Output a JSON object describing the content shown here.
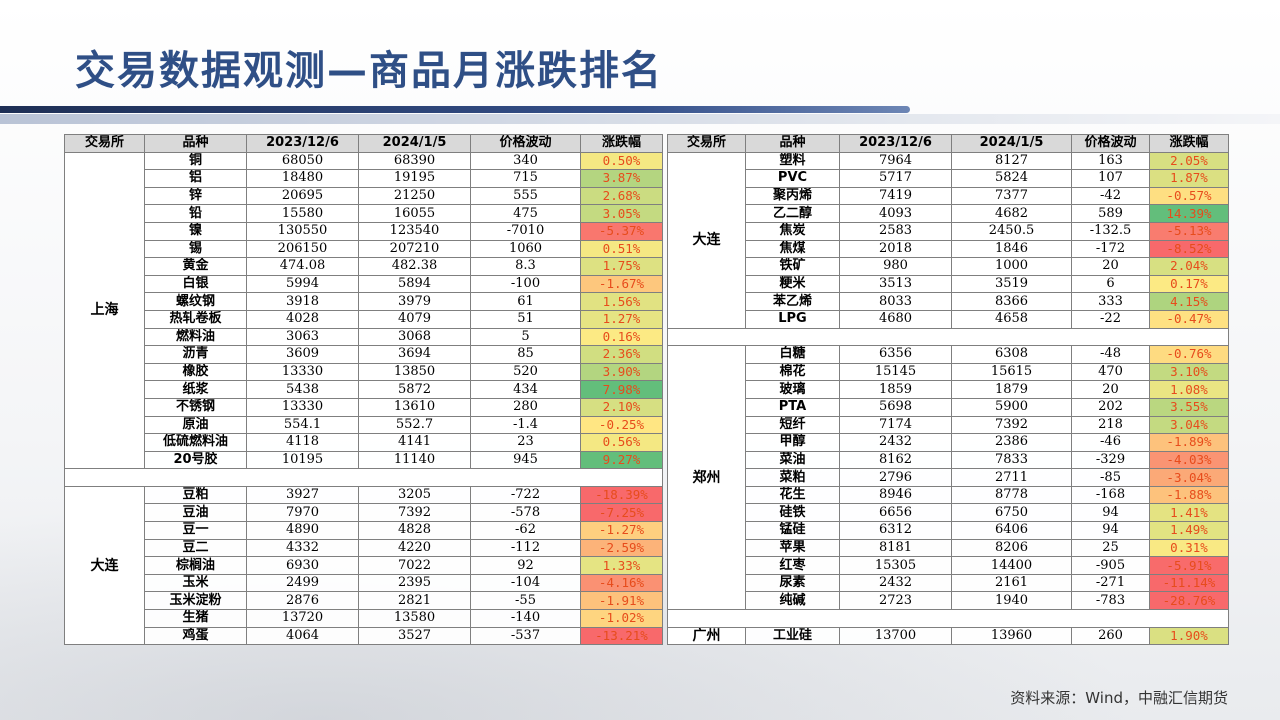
{
  "title": "交易数据观测—商品月涨跌排名",
  "source": "资料来源：Wind，中融汇信期货",
  "headers": [
    "交易所",
    "品种",
    "2023/12/6",
    "2024/1/5",
    "价格波动",
    "涨跌幅"
  ],
  "colors": {
    "up": "#63be7b",
    "down": "#f8696b",
    "mid": "#ffeb84",
    "change_text": "#e74c1c",
    "title": "#2f4f86"
  },
  "left_groups": [
    {
      "exchange": "上海",
      "rows": [
        {
          "name": "铜",
          "p1": "68050",
          "p2": "68390",
          "diff": "340",
          "chg": "0.50%",
          "pct": 0.5
        },
        {
          "name": "铝",
          "p1": "18480",
          "p2": "19195",
          "diff": "715",
          "chg": "3.87%",
          "pct": 3.87
        },
        {
          "name": "锌",
          "p1": "20695",
          "p2": "21250",
          "diff": "555",
          "chg": "2.68%",
          "pct": 2.68
        },
        {
          "name": "铅",
          "p1": "15580",
          "p2": "16055",
          "diff": "475",
          "chg": "3.05%",
          "pct": 3.05
        },
        {
          "name": "镍",
          "p1": "130550",
          "p2": "123540",
          "diff": "-7010",
          "chg": "-5.37%",
          "pct": -5.37
        },
        {
          "name": "锡",
          "p1": "206150",
          "p2": "207210",
          "diff": "1060",
          "chg": "0.51%",
          "pct": 0.51
        },
        {
          "name": "黄金",
          "p1": "474.08",
          "p2": "482.38",
          "diff": "8.3",
          "chg": "1.75%",
          "pct": 1.75
        },
        {
          "name": "白银",
          "p1": "5994",
          "p2": "5894",
          "diff": "-100",
          "chg": "-1.67%",
          "pct": -1.67
        },
        {
          "name": "螺纹钢",
          "p1": "3918",
          "p2": "3979",
          "diff": "61",
          "chg": "1.56%",
          "pct": 1.56
        },
        {
          "name": "热轧卷板",
          "p1": "4028",
          "p2": "4079",
          "diff": "51",
          "chg": "1.27%",
          "pct": 1.27
        },
        {
          "name": "燃料油",
          "p1": "3063",
          "p2": "3068",
          "diff": "5",
          "chg": "0.16%",
          "pct": 0.16
        },
        {
          "name": "沥青",
          "p1": "3609",
          "p2": "3694",
          "diff": "85",
          "chg": "2.36%",
          "pct": 2.36
        },
        {
          "name": "橡胶",
          "p1": "13330",
          "p2": "13850",
          "diff": "520",
          "chg": "3.90%",
          "pct": 3.9
        },
        {
          "name": "纸浆",
          "p1": "5438",
          "p2": "5872",
          "diff": "434",
          "chg": "7.98%",
          "pct": 7.98
        },
        {
          "name": "不锈钢",
          "p1": "13330",
          "p2": "13610",
          "diff": "280",
          "chg": "2.10%",
          "pct": 2.1
        },
        {
          "name": "原油",
          "p1": "554.1",
          "p2": "552.7",
          "diff": "-1.4",
          "chg": "-0.25%",
          "pct": -0.25
        },
        {
          "name": "低硫燃料油",
          "p1": "4118",
          "p2": "4141",
          "diff": "23",
          "chg": "0.56%",
          "pct": 0.56
        },
        {
          "name": "20号胶",
          "p1": "10195",
          "p2": "11140",
          "diff": "945",
          "chg": "9.27%",
          "pct": 9.27
        }
      ]
    },
    {
      "exchange": "大连",
      "rows": [
        {
          "name": "豆粕",
          "p1": "3927",
          "p2": "3205",
          "diff": "-722",
          "chg": "-18.39%",
          "pct": -18.39
        },
        {
          "name": "豆油",
          "p1": "7970",
          "p2": "7392",
          "diff": "-578",
          "chg": "-7.25%",
          "pct": -7.25
        },
        {
          "name": "豆一",
          "p1": "4890",
          "p2": "4828",
          "diff": "-62",
          "chg": "-1.27%",
          "pct": -1.27
        },
        {
          "name": "豆二",
          "p1": "4332",
          "p2": "4220",
          "diff": "-112",
          "chg": "-2.59%",
          "pct": -2.59
        },
        {
          "name": "棕榈油",
          "p1": "6930",
          "p2": "7022",
          "diff": "92",
          "chg": "1.33%",
          "pct": 1.33
        },
        {
          "name": "玉米",
          "p1": "2499",
          "p2": "2395",
          "diff": "-104",
          "chg": "-4.16%",
          "pct": -4.16
        },
        {
          "name": "玉米淀粉",
          "p1": "2876",
          "p2": "2821",
          "diff": "-55",
          "chg": "-1.91%",
          "pct": -1.91
        },
        {
          "name": "生猪",
          "p1": "13720",
          "p2": "13580",
          "diff": "-140",
          "chg": "-1.02%",
          "pct": -1.02
        },
        {
          "name": "鸡蛋",
          "p1": "4064",
          "p2": "3527",
          "diff": "-537",
          "chg": "-13.21%",
          "pct": -13.21
        }
      ]
    }
  ],
  "right_groups": [
    {
      "exchange": "大连",
      "rows": [
        {
          "name": "塑料",
          "p1": "7964",
          "p2": "8127",
          "diff": "163",
          "chg": "2.05%",
          "pct": 2.05
        },
        {
          "name": "PVC",
          "p1": "5717",
          "p2": "5824",
          "diff": "107",
          "chg": "1.87%",
          "pct": 1.87
        },
        {
          "name": "聚丙烯",
          "p1": "7419",
          "p2": "7377",
          "diff": "-42",
          "chg": "-0.57%",
          "pct": -0.57
        },
        {
          "name": "乙二醇",
          "p1": "4093",
          "p2": "4682",
          "diff": "589",
          "chg": "14.39%",
          "pct": 14.39
        },
        {
          "name": "焦炭",
          "p1": "2583",
          "p2": "2450.5",
          "diff": "-132.5",
          "chg": "-5.13%",
          "pct": -5.13
        },
        {
          "name": "焦煤",
          "p1": "2018",
          "p2": "1846",
          "diff": "-172",
          "chg": "-8.52%",
          "pct": -8.52
        },
        {
          "name": "铁矿",
          "p1": "980",
          "p2": "1000",
          "diff": "20",
          "chg": "2.04%",
          "pct": 2.04
        },
        {
          "name": "粳米",
          "p1": "3513",
          "p2": "3519",
          "diff": "6",
          "chg": "0.17%",
          "pct": 0.17
        },
        {
          "name": "苯乙烯",
          "p1": "8033",
          "p2": "8366",
          "diff": "333",
          "chg": "4.15%",
          "pct": 4.15
        },
        {
          "name": "LPG",
          "p1": "4680",
          "p2": "4658",
          "diff": "-22",
          "chg": "-0.47%",
          "pct": -0.47
        }
      ]
    },
    {
      "exchange": "郑州",
      "rows": [
        {
          "name": "白糖",
          "p1": "6356",
          "p2": "6308",
          "diff": "-48",
          "chg": "-0.76%",
          "pct": -0.76
        },
        {
          "name": "棉花",
          "p1": "15145",
          "p2": "15615",
          "diff": "470",
          "chg": "3.10%",
          "pct": 3.1
        },
        {
          "name": "玻璃",
          "p1": "1859",
          "p2": "1879",
          "diff": "20",
          "chg": "1.08%",
          "pct": 1.08
        },
        {
          "name": "PTA",
          "p1": "5698",
          "p2": "5900",
          "diff": "202",
          "chg": "3.55%",
          "pct": 3.55
        },
        {
          "name": "短纤",
          "p1": "7174",
          "p2": "7392",
          "diff": "218",
          "chg": "3.04%",
          "pct": 3.04
        },
        {
          "name": "甲醇",
          "p1": "2432",
          "p2": "2386",
          "diff": "-46",
          "chg": "-1.89%",
          "pct": -1.89
        },
        {
          "name": "菜油",
          "p1": "8162",
          "p2": "7833",
          "diff": "-329",
          "chg": "-4.03%",
          "pct": -4.03
        },
        {
          "name": "菜粕",
          "p1": "2796",
          "p2": "2711",
          "diff": "-85",
          "chg": "-3.04%",
          "pct": -3.04
        },
        {
          "name": "花生",
          "p1": "8946",
          "p2": "8778",
          "diff": "-168",
          "chg": "-1.88%",
          "pct": -1.88
        },
        {
          "name": "硅铁",
          "p1": "6656",
          "p2": "6750",
          "diff": "94",
          "chg": "1.41%",
          "pct": 1.41
        },
        {
          "name": "锰硅",
          "p1": "6312",
          "p2": "6406",
          "diff": "94",
          "chg": "1.49%",
          "pct": 1.49
        },
        {
          "name": "苹果",
          "p1": "8181",
          "p2": "8206",
          "diff": "25",
          "chg": "0.31%",
          "pct": 0.31
        },
        {
          "name": "红枣",
          "p1": "15305",
          "p2": "14400",
          "diff": "-905",
          "chg": "-5.91%",
          "pct": -5.91
        },
        {
          "name": "尿素",
          "p1": "2432",
          "p2": "2161",
          "diff": "-271",
          "chg": "-11.14%",
          "pct": -11.14
        },
        {
          "name": "纯碱",
          "p1": "2723",
          "p2": "1940",
          "diff": "-783",
          "chg": "-28.76%",
          "pct": -28.76
        }
      ]
    },
    {
      "exchange": "广州",
      "rows": [
        {
          "name": "工业硅",
          "p1": "13700",
          "p2": "13960",
          "diff": "260",
          "chg": "1.90%",
          "pct": 1.9
        }
      ]
    }
  ]
}
